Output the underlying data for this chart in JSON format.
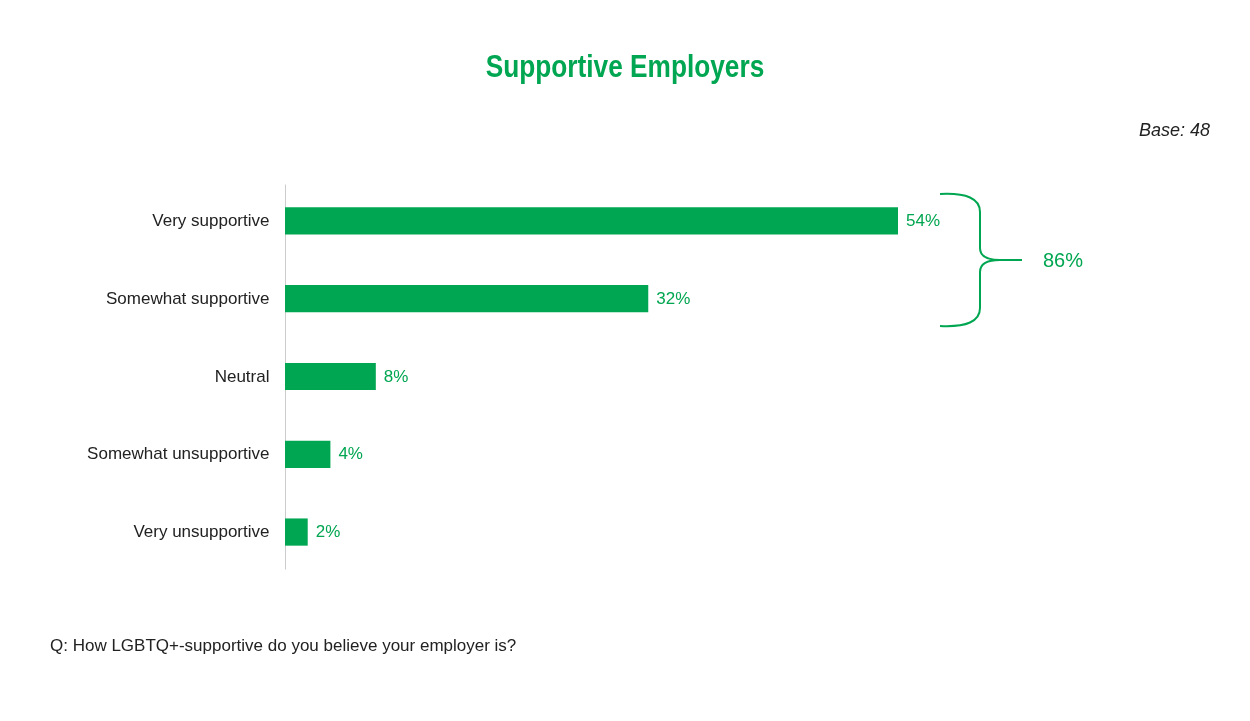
{
  "chart_data": {
    "type": "bar",
    "orientation": "horizontal",
    "title": "Supportive Employers",
    "categories": [
      "Very supportive",
      "Somewhat supportive",
      "Neutral",
      "Somewhat unsupportive",
      "Very unsupportive"
    ],
    "values": [
      54,
      32,
      8,
      4,
      2
    ],
    "value_labels": [
      "54%",
      "32%",
      "8%",
      "4%",
      "2%"
    ],
    "color": "#00a651",
    "annotations": [
      "86%",
      "Base: 48",
      "Q: How LGBTQ+-supportive do you believe your employer is?"
    ]
  }
}
